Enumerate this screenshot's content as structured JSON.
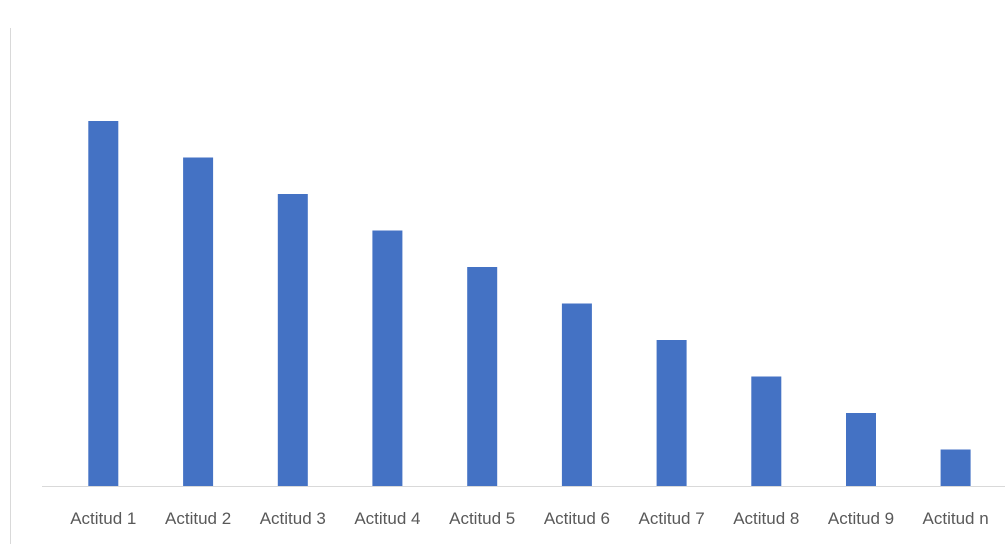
{
  "chart_data": {
    "type": "bar",
    "title": "",
    "xlabel": "",
    "ylabel": "",
    "categories": [
      "Actitud 1",
      "Actitud 2",
      "Actitud 3",
      "Actitud 4",
      "Actitud 5",
      "Actitud 6",
      "Actitud 7",
      "Actitud 8",
      "Actitud 9",
      "Actitud n"
    ],
    "values": [
      10,
      9,
      8,
      7,
      6,
      5,
      4,
      3,
      2,
      1
    ],
    "ylim": [
      0,
      10
    ],
    "grid": false,
    "legend": "none",
    "value_axis_visible": false,
    "colors": {
      "bar": "#4472C4",
      "axis": "#D9D9D9",
      "tick_label": "#595959"
    }
  }
}
